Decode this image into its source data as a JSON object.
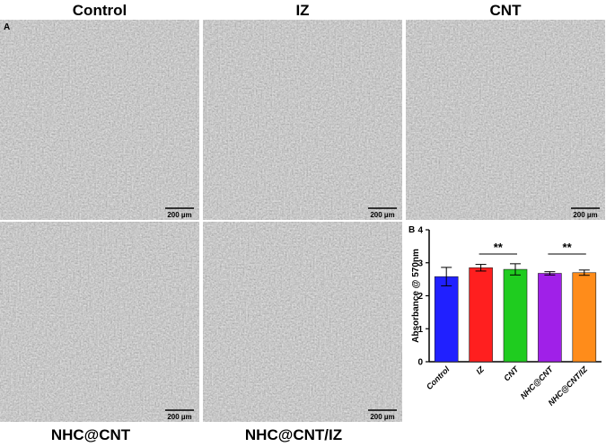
{
  "figure": {
    "panel_a": "A",
    "images": [
      {
        "title": "Control",
        "scale": "200 µm"
      },
      {
        "title": "IZ",
        "scale": "200 µm"
      },
      {
        "title": "CNT",
        "scale": "200 µm"
      },
      {
        "title": "NHC@CNT",
        "scale": "200 µm"
      },
      {
        "title": "NHC@CNT/IZ",
        "scale": "200 µm"
      }
    ]
  },
  "chart_data": {
    "type": "bar",
    "panel": "B",
    "ylabel": "Absorbance @ 570nm",
    "categories": [
      "Control",
      "IZ",
      "CNT",
      "NHC@CNT",
      "NHC@CNT/IZ"
    ],
    "values": [
      2.58,
      2.85,
      2.8,
      2.68,
      2.7
    ],
    "errors": [
      0.28,
      0.1,
      0.17,
      0.05,
      0.08
    ],
    "colors": [
      "#2020ff",
      "#ff1f1f",
      "#1fcc1f",
      "#a020e8",
      "#ff8c1a"
    ],
    "ylim": [
      0,
      4
    ],
    "yticks": [
      0,
      1,
      2,
      3,
      4
    ],
    "annotations": [
      "**",
      "**"
    ]
  }
}
